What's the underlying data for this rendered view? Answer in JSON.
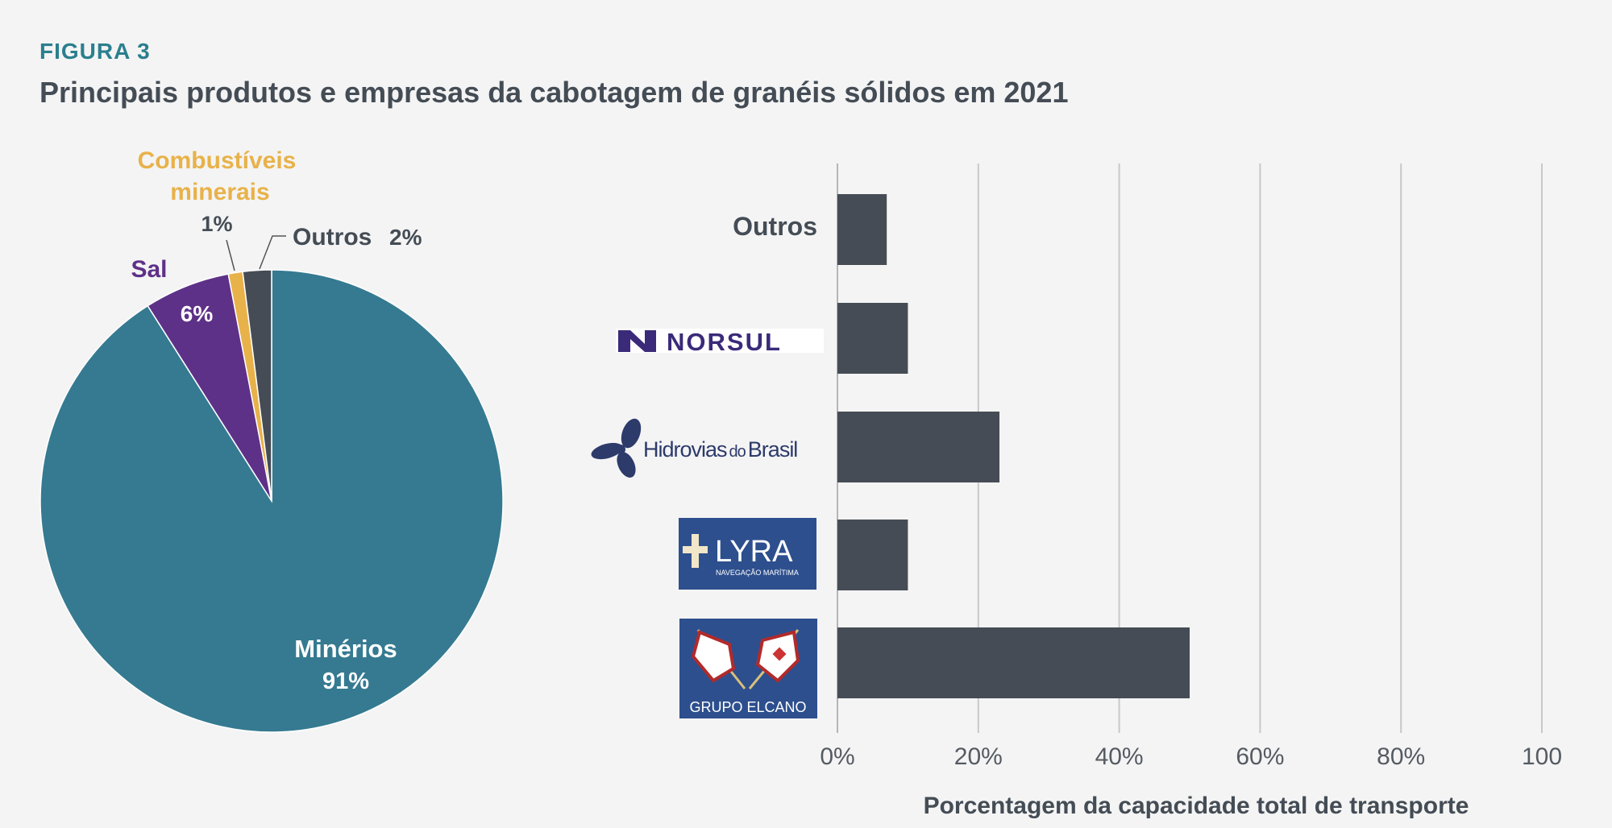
{
  "figure_label": "FIGURA 3",
  "title": "Principais produtos e empresas da cabotagem de granéis sólidos em 2021",
  "colors": {
    "minerios": "#357a91",
    "sal": "#5e3188",
    "combustiveis": "#e8b24a",
    "outros": "#454c55",
    "bar": "#454c55",
    "grid": "#c8c8c8",
    "text": "#444c55"
  },
  "chart_data": [
    {
      "type": "pie",
      "slices": [
        {
          "name": "Minérios",
          "pct_label": "91%",
          "value": 91,
          "color": "#357a91"
        },
        {
          "name": "Sal",
          "pct_label": "6%",
          "value": 6,
          "color": "#5e3188"
        },
        {
          "name": "Combustíveis minerais",
          "name_lines": [
            "Combustíveis",
            "minerais"
          ],
          "pct_label": "1%",
          "value": 1,
          "color": "#e8b24a"
        },
        {
          "name": "Outros",
          "pct_label": "2%",
          "value": 2,
          "color": "#454c55"
        }
      ]
    },
    {
      "type": "bar",
      "orientation": "horizontal",
      "categories": [
        "Outros",
        "NORSUL",
        "Hidrovias do Brasil",
        "LYRA",
        "GRUPO ELCANO"
      ],
      "logos": {
        "norsul": "NORSUL",
        "hidrovias": [
          "Hidrovias",
          "do",
          "Brasil"
        ],
        "lyra": "LYRA",
        "lyra_sub": "NAVEGAÇÃO MARÍTIMA",
        "elcano": "GRUPO ELCANO"
      },
      "values": [
        7,
        10,
        23,
        10,
        50
      ],
      "xlim": [
        0,
        100
      ],
      "xticks": [
        0,
        20,
        40,
        60,
        80,
        100
      ],
      "xtick_labels": [
        "0%",
        "20%",
        "40%",
        "60%",
        "80%",
        "100"
      ],
      "xlabel": "Porcentagem da capacidade total de transporte",
      "grid": true
    }
  ]
}
